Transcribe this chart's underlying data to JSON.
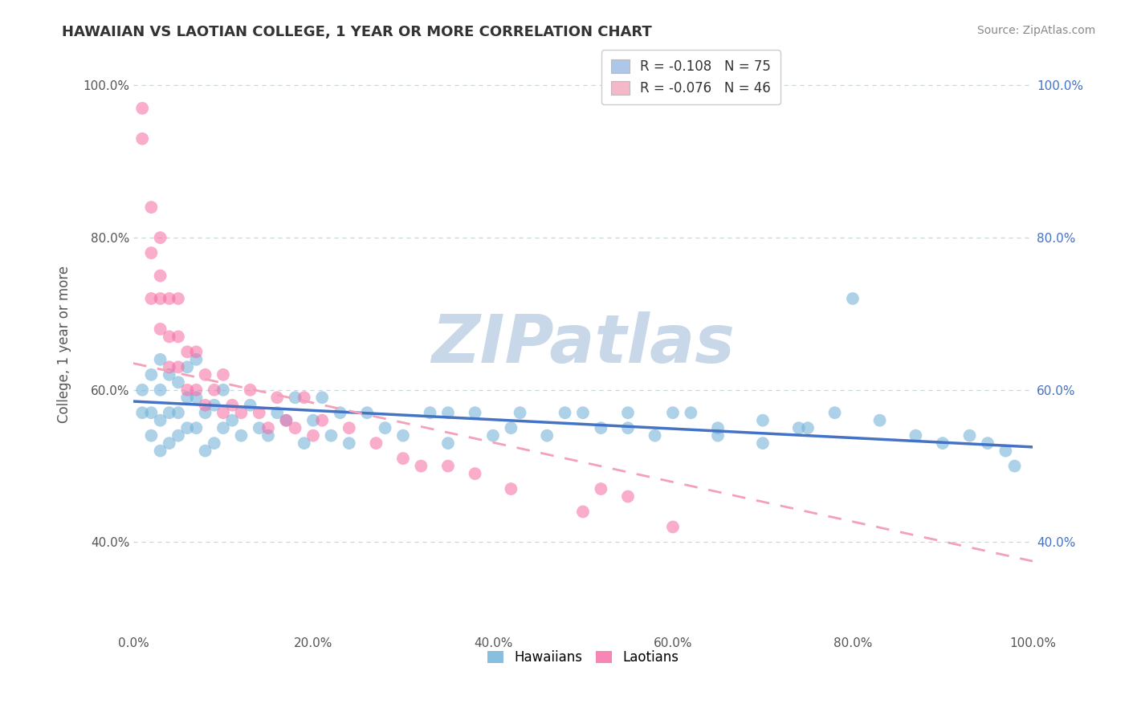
{
  "title": "HAWAIIAN VS LAOTIAN COLLEGE, 1 YEAR OR MORE CORRELATION CHART",
  "source": "Source: ZipAtlas.com",
  "xlabel": "",
  "ylabel": "College, 1 year or more",
  "xlim": [
    0.0,
    1.0
  ],
  "ylim": [
    0.28,
    1.04
  ],
  "xticks": [
    0.0,
    0.2,
    0.4,
    0.6,
    0.8,
    1.0
  ],
  "xticklabels": [
    "0.0%",
    "20.0%",
    "40.0%",
    "60.0%",
    "80.0%",
    "100.0%"
  ],
  "yticks": [
    0.4,
    0.6,
    0.8,
    1.0
  ],
  "yticklabels": [
    "40.0%",
    "60.0%",
    "80.0%",
    "100.0%"
  ],
  "legend_entries": [
    {
      "label": "R = -0.108   N = 75",
      "color": "#aec6e8"
    },
    {
      "label": "R = -0.076   N = 46",
      "color": "#f4b8c8"
    }
  ],
  "legend_bottom": [
    "Hawaiians",
    "Laotians"
  ],
  "hawaiian_color": "#6baed6",
  "laotian_color": "#f768a1",
  "hawaiian_alpha": 0.55,
  "laotian_alpha": 0.55,
  "watermark": "ZIPatlas",
  "watermark_color": "#c8d8e8",
  "hawaiian_R": -0.108,
  "hawaiian_N": 75,
  "laotian_R": -0.076,
  "laotian_N": 46,
  "background_color": "#ffffff",
  "grid_color": "#c8d4dc",
  "title_color": "#333333",
  "axis_label_color": "#555555",
  "tick_color_left": "#555555",
  "tick_color_right": "#4472c4",
  "hawaiian_x": [
    0.01,
    0.01,
    0.02,
    0.02,
    0.02,
    0.03,
    0.03,
    0.03,
    0.03,
    0.04,
    0.04,
    0.04,
    0.05,
    0.05,
    0.05,
    0.06,
    0.06,
    0.06,
    0.07,
    0.07,
    0.07,
    0.08,
    0.08,
    0.09,
    0.09,
    0.1,
    0.1,
    0.11,
    0.12,
    0.13,
    0.14,
    0.15,
    0.16,
    0.17,
    0.18,
    0.19,
    0.2,
    0.21,
    0.22,
    0.23,
    0.24,
    0.26,
    0.28,
    0.3,
    0.33,
    0.35,
    0.38,
    0.4,
    0.43,
    0.46,
    0.5,
    0.52,
    0.55,
    0.58,
    0.62,
    0.65,
    0.7,
    0.74,
    0.78,
    0.83,
    0.87,
    0.9,
    0.93,
    0.95,
    0.97,
    0.98,
    0.35,
    0.42,
    0.48,
    0.55,
    0.6,
    0.65,
    0.7,
    0.75,
    0.8
  ],
  "hawaiian_y": [
    0.57,
    0.6,
    0.54,
    0.57,
    0.62,
    0.52,
    0.56,
    0.6,
    0.64,
    0.53,
    0.57,
    0.62,
    0.54,
    0.57,
    0.61,
    0.55,
    0.59,
    0.63,
    0.55,
    0.59,
    0.64,
    0.52,
    0.57,
    0.53,
    0.58,
    0.55,
    0.6,
    0.56,
    0.54,
    0.58,
    0.55,
    0.54,
    0.57,
    0.56,
    0.59,
    0.53,
    0.56,
    0.59,
    0.54,
    0.57,
    0.53,
    0.57,
    0.55,
    0.54,
    0.57,
    0.53,
    0.57,
    0.54,
    0.57,
    0.54,
    0.57,
    0.55,
    0.57,
    0.54,
    0.57,
    0.54,
    0.56,
    0.55,
    0.57,
    0.56,
    0.54,
    0.53,
    0.54,
    0.53,
    0.52,
    0.5,
    0.57,
    0.55,
    0.57,
    0.55,
    0.57,
    0.55,
    0.53,
    0.55,
    0.72
  ],
  "laotian_x": [
    0.01,
    0.01,
    0.02,
    0.02,
    0.02,
    0.03,
    0.03,
    0.03,
    0.03,
    0.04,
    0.04,
    0.04,
    0.05,
    0.05,
    0.05,
    0.06,
    0.06,
    0.07,
    0.07,
    0.08,
    0.08,
    0.09,
    0.1,
    0.1,
    0.11,
    0.12,
    0.13,
    0.14,
    0.15,
    0.16,
    0.17,
    0.18,
    0.19,
    0.2,
    0.21,
    0.24,
    0.27,
    0.3,
    0.32,
    0.35,
    0.38,
    0.42,
    0.5,
    0.52,
    0.55,
    0.6
  ],
  "laotian_y": [
    0.93,
    0.97,
    0.72,
    0.78,
    0.84,
    0.68,
    0.72,
    0.75,
    0.8,
    0.63,
    0.67,
    0.72,
    0.63,
    0.67,
    0.72,
    0.6,
    0.65,
    0.6,
    0.65,
    0.58,
    0.62,
    0.6,
    0.57,
    0.62,
    0.58,
    0.57,
    0.6,
    0.57,
    0.55,
    0.59,
    0.56,
    0.55,
    0.59,
    0.54,
    0.56,
    0.55,
    0.53,
    0.51,
    0.5,
    0.5,
    0.49,
    0.47,
    0.44,
    0.47,
    0.46,
    0.42
  ],
  "hawaiian_line_color": "#4472c4",
  "laotian_line_color": "#f4a0b8",
  "hawaiian_line_y0": 0.585,
  "hawaiian_line_y1": 0.525,
  "laotian_line_y0": 0.635,
  "laotian_line_y1": 0.375
}
